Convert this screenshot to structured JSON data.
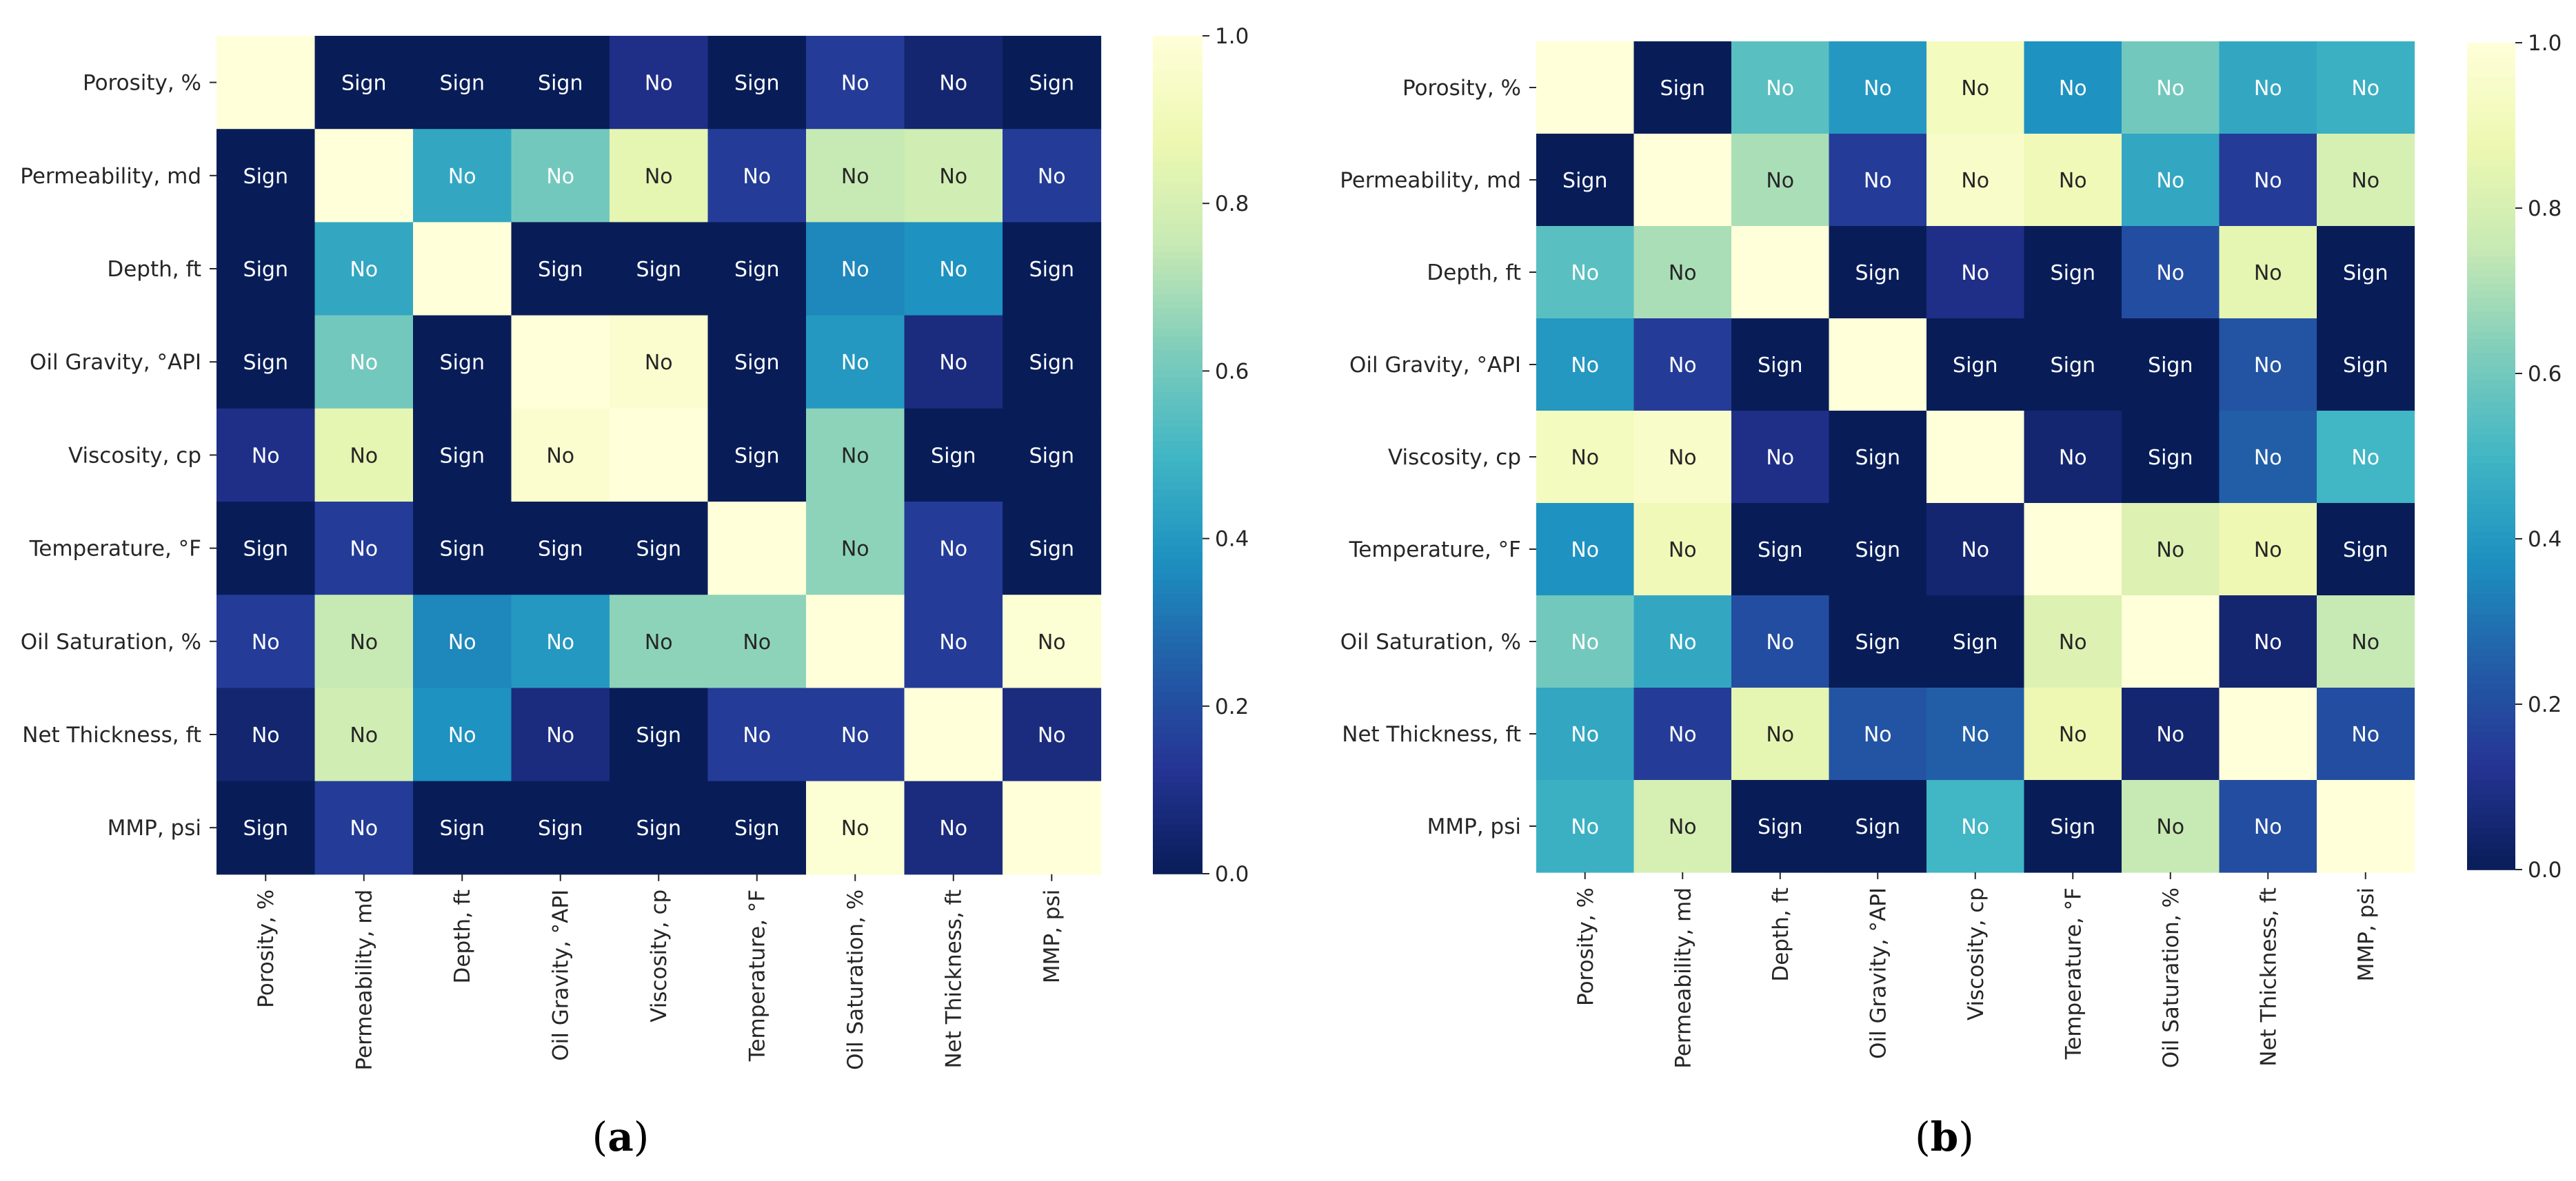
{
  "chart_data": [
    {
      "type": "heatmap",
      "panel_label": "(a)",
      "rows": [
        "Porosity, %",
        "Permeability, md",
        "Depth, ft",
        "Oil Gravity, °API",
        "Viscosity, cp",
        "Temperature, °F",
        "Oil Saturation, %",
        "Net Thickness, ft",
        "MMP, psi"
      ],
      "columns": [
        "Porosity, %",
        "Permeability, md",
        "Depth, ft",
        "Oil Gravity, °API",
        "Viscosity, cp",
        "Temperature, °F",
        "Oil Saturation, %",
        "Net Thickness, ft",
        "MMP, psi"
      ],
      "values": [
        [
          1.0,
          0.0,
          0.0,
          0.0,
          0.1,
          0.0,
          0.15,
          0.05,
          0.0
        ],
        [
          0.0,
          1.0,
          0.45,
          0.6,
          0.85,
          0.15,
          0.75,
          0.78,
          0.15
        ],
        [
          0.0,
          0.45,
          1.0,
          0.0,
          0.0,
          0.0,
          0.35,
          0.38,
          0.0
        ],
        [
          0.0,
          0.6,
          0.0,
          1.0,
          0.97,
          0.0,
          0.4,
          0.08,
          0.0
        ],
        [
          0.1,
          0.85,
          0.0,
          0.97,
          1.0,
          0.0,
          0.65,
          0.0,
          0.0
        ],
        [
          0.0,
          0.15,
          0.0,
          0.0,
          0.0,
          1.0,
          0.65,
          0.15,
          0.0
        ],
        [
          0.15,
          0.75,
          0.35,
          0.4,
          0.65,
          0.65,
          1.0,
          0.15,
          0.98
        ],
        [
          0.05,
          0.78,
          0.38,
          0.08,
          0.0,
          0.15,
          0.15,
          1.0,
          0.08
        ],
        [
          0.0,
          0.15,
          0.0,
          0.0,
          0.0,
          0.0,
          0.98,
          0.08,
          1.0
        ]
      ],
      "annotations": [
        [
          "",
          "Sign",
          "Sign",
          "Sign",
          "No",
          "Sign",
          "No",
          "No",
          "Sign"
        ],
        [
          "Sign",
          "",
          "No",
          "No",
          "No",
          "No",
          "No",
          "No",
          "No"
        ],
        [
          "Sign",
          "No",
          "",
          "Sign",
          "Sign",
          "Sign",
          "No",
          "No",
          "Sign"
        ],
        [
          "Sign",
          "No",
          "Sign",
          "",
          "No",
          "Sign",
          "No",
          "No",
          "Sign"
        ],
        [
          "No",
          "No",
          "Sign",
          "No",
          "",
          "Sign",
          "No",
          "Sign",
          "Sign"
        ],
        [
          "Sign",
          "No",
          "Sign",
          "Sign",
          "Sign",
          "",
          "No",
          "No",
          "Sign"
        ],
        [
          "No",
          "No",
          "No",
          "No",
          "No",
          "No",
          "",
          "No",
          "No"
        ],
        [
          "No",
          "No",
          "No",
          "No",
          "Sign",
          "No",
          "No",
          "",
          "No"
        ],
        [
          "Sign",
          "No",
          "Sign",
          "Sign",
          "Sign",
          "Sign",
          "No",
          "No",
          ""
        ]
      ],
      "colorbar": {
        "range": [
          0.0,
          1.0
        ],
        "ticks": [
          "0.0",
          "0.2",
          "0.4",
          "0.6",
          "0.8",
          "1.0"
        ]
      }
    },
    {
      "type": "heatmap",
      "panel_label": "(b)",
      "rows": [
        "Porosity, %",
        "Permeability, md",
        "Depth, ft",
        "Oil Gravity, °API",
        "Viscosity, cp",
        "Temperature, °F",
        "Oil Saturation, %",
        "Net Thickness, ft",
        "MMP, psi"
      ],
      "columns": [
        "Porosity, %",
        "Permeability, md",
        "Depth, ft",
        "Oil Gravity, °API",
        "Viscosity, cp",
        "Temperature, °F",
        "Oil Saturation, %",
        "Net Thickness, ft",
        "MMP, psi"
      ],
      "values": [
        [
          1.0,
          0.0,
          0.55,
          0.4,
          0.92,
          0.38,
          0.6,
          0.45,
          0.48
        ],
        [
          0.0,
          1.0,
          0.7,
          0.15,
          0.95,
          0.9,
          0.45,
          0.15,
          0.8
        ],
        [
          0.55,
          0.7,
          1.0,
          0.0,
          0.1,
          0.0,
          0.2,
          0.85,
          0.0
        ],
        [
          0.4,
          0.15,
          0.0,
          1.0,
          0.0,
          0.0,
          0.0,
          0.22,
          0.0
        ],
        [
          0.92,
          0.95,
          0.1,
          0.0,
          1.0,
          0.05,
          0.0,
          0.25,
          0.5
        ],
        [
          0.38,
          0.9,
          0.0,
          0.0,
          0.05,
          1.0,
          0.82,
          0.88,
          0.0
        ],
        [
          0.6,
          0.45,
          0.2,
          0.0,
          0.0,
          0.82,
          1.0,
          0.05,
          0.75
        ],
        [
          0.45,
          0.15,
          0.85,
          0.22,
          0.25,
          0.88,
          0.05,
          1.0,
          0.2
        ],
        [
          0.48,
          0.8,
          0.0,
          0.0,
          0.5,
          0.0,
          0.75,
          0.2,
          1.0
        ]
      ],
      "annotations": [
        [
          "",
          "Sign",
          "No",
          "No",
          "No",
          "No",
          "No",
          "No",
          "No"
        ],
        [
          "Sign",
          "",
          "No",
          "No",
          "No",
          "No",
          "No",
          "No",
          "No"
        ],
        [
          "No",
          "No",
          "",
          "Sign",
          "No",
          "Sign",
          "No",
          "No",
          "Sign"
        ],
        [
          "No",
          "No",
          "Sign",
          "",
          "Sign",
          "Sign",
          "Sign",
          "No",
          "Sign"
        ],
        [
          "No",
          "No",
          "No",
          "Sign",
          "",
          "No",
          "Sign",
          "No",
          "No"
        ],
        [
          "No",
          "No",
          "Sign",
          "Sign",
          "No",
          "",
          "No",
          "No",
          "Sign"
        ],
        [
          "No",
          "No",
          "No",
          "Sign",
          "Sign",
          "No",
          "",
          "No",
          "No"
        ],
        [
          "No",
          "No",
          "No",
          "No",
          "No",
          "No",
          "No",
          "",
          "No"
        ],
        [
          "No",
          "No",
          "Sign",
          "Sign",
          "No",
          "Sign",
          "No",
          "No",
          ""
        ]
      ],
      "colorbar": {
        "range": [
          0.0,
          1.0
        ],
        "ticks": [
          "0.0",
          "0.2",
          "0.4",
          "0.6",
          "0.8",
          "1.0"
        ]
      }
    }
  ],
  "colormap": {
    "name": "YlGnBu",
    "stops": [
      "#081d58",
      "#253494",
      "#225ea8",
      "#1d91c0",
      "#41b6c4",
      "#7fcdbb",
      "#c7e9b4",
      "#edf8b1",
      "#ffffd9"
    ]
  }
}
